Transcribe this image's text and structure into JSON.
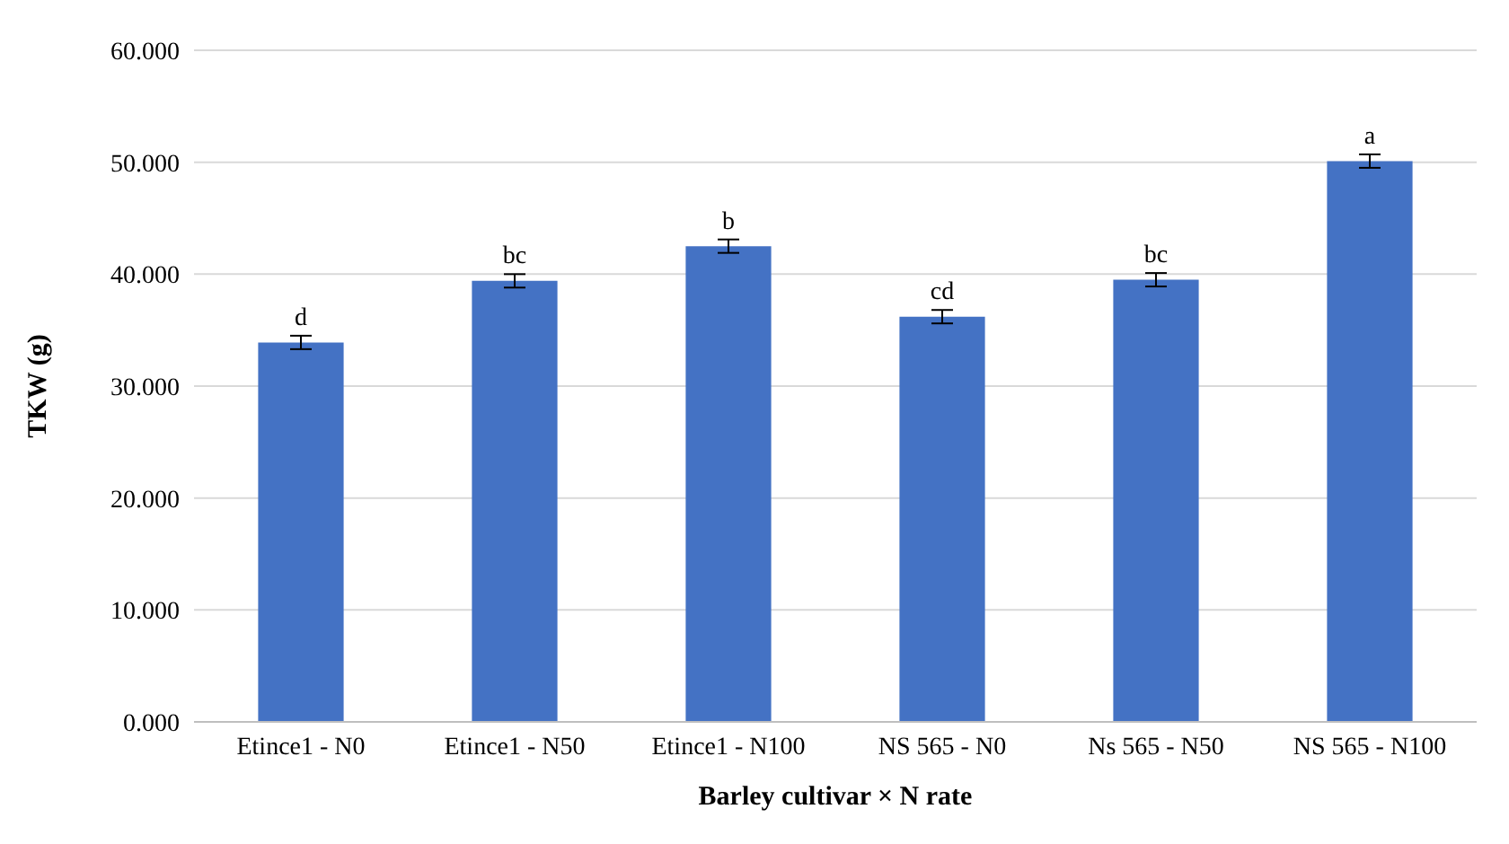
{
  "chart_data": {
    "type": "bar",
    "xlabel": "Barley cultivar × N rate",
    "ylabel": "TKW (g)",
    "categories": [
      "Etince1 - N0",
      "Etince1 - N50",
      "Etince1 - N100",
      "NS 565 - N0",
      "Ns 565 - N50",
      "NS 565 - N100"
    ],
    "values": [
      33.9,
      39.4,
      42.5,
      36.2,
      39.5,
      50.1
    ],
    "color": "#4472c4",
    "errors": [
      0.6,
      0.6,
      0.6,
      0.6,
      0.6,
      0.6
    ],
    "ylim": [
      0,
      60
    ],
    "yticks": [
      {
        "value": 0,
        "label": "0.000"
      },
      {
        "value": 10,
        "label": "10.000"
      },
      {
        "value": 20,
        "label": "20.000"
      },
      {
        "value": 30,
        "label": "30.000"
      },
      {
        "value": 40,
        "label": "40.000"
      },
      {
        "value": 50,
        "label": "50.000"
      },
      {
        "value": 60,
        "label": "60.000"
      }
    ],
    "grid": "y",
    "annotations": [
      {
        "text": "d",
        "x": "Etince1 - N0",
        "y": 34.5
      },
      {
        "text": "bc",
        "x": "Etince1 - N50",
        "y": 40.0
      },
      {
        "text": "b",
        "x": "Etince1 - N100",
        "y": 43.1
      },
      {
        "text": "cd",
        "x": "NS 565 - N0",
        "y": 36.8
      },
      {
        "text": "bc",
        "x": "Ns 565 - N50",
        "y": 40.1
      },
      {
        "text": "a",
        "x": "NS 565 - N100",
        "y": 50.7
      }
    ]
  }
}
